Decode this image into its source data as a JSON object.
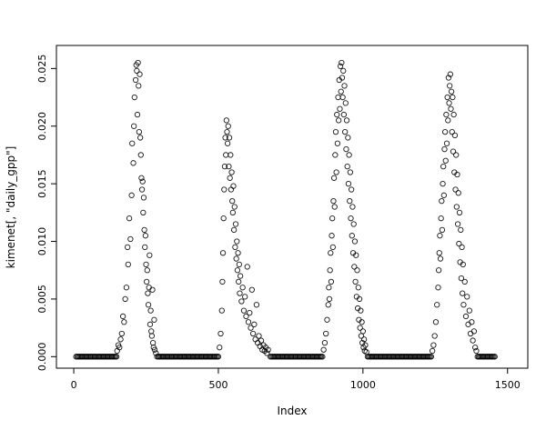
{
  "chart_data": {
    "type": "scatter",
    "title": "",
    "xlabel": "Index",
    "ylabel": "kimenet[, \"daily_gpp\"]",
    "point_style": "open-circle",
    "point_color": "#000000",
    "background_color": "#ffffff",
    "grid": false,
    "legend": false,
    "x_range": [
      -60,
      1570
    ],
    "y_range": [
      -0.001,
      0.027
    ],
    "x_ticks": [
      0,
      500,
      1000,
      1500
    ],
    "x_tick_labels": [
      "0",
      "500",
      "1000",
      "1500"
    ],
    "y_ticks": [
      0.0,
      0.005,
      0.01,
      0.015,
      0.02,
      0.025
    ],
    "y_tick_labels": [
      "0.000",
      "0.005",
      "0.010",
      "0.015",
      "0.020",
      "0.025"
    ],
    "baseline_runs": [
      {
        "x_start": 8,
        "x_end": 148,
        "step": 4,
        "y": 0
      },
      {
        "x_start": 288,
        "x_end": 500,
        "step": 4,
        "y": 0
      },
      {
        "x_start": 680,
        "x_end": 860,
        "step": 4,
        "y": 0
      },
      {
        "x_start": 1016,
        "x_end": 1236,
        "step": 4,
        "y": 0
      },
      {
        "x_start": 1396,
        "x_end": 1456,
        "step": 4,
        "y": 0
      }
    ],
    "points": [
      [
        150,
        0.0005
      ],
      [
        154,
        0.001
      ],
      [
        158,
        0.0008
      ],
      [
        162,
        0.0015
      ],
      [
        166,
        0.002
      ],
      [
        170,
        0.0035
      ],
      [
        174,
        0.003
      ],
      [
        178,
        0.005
      ],
      [
        182,
        0.006
      ],
      [
        186,
        0.0095
      ],
      [
        188,
        0.008
      ],
      [
        192,
        0.012
      ],
      [
        196,
        0.0102
      ],
      [
        200,
        0.014
      ],
      [
        202,
        0.0185
      ],
      [
        206,
        0.0168
      ],
      [
        208,
        0.02
      ],
      [
        210,
        0.0225
      ],
      [
        214,
        0.024
      ],
      [
        216,
        0.0253
      ],
      [
        218,
        0.0248
      ],
      [
        220,
        0.021
      ],
      [
        222,
        0.0255
      ],
      [
        224,
        0.0235
      ],
      [
        226,
        0.0195
      ],
      [
        228,
        0.0245
      ],
      [
        230,
        0.019
      ],
      [
        232,
        0.0175
      ],
      [
        234,
        0.0155
      ],
      [
        236,
        0.0145
      ],
      [
        238,
        0.0152
      ],
      [
        240,
        0.0125
      ],
      [
        242,
        0.0138
      ],
      [
        244,
        0.011
      ],
      [
        246,
        0.0095
      ],
      [
        248,
        0.0105
      ],
      [
        250,
        0.008
      ],
      [
        252,
        0.0065
      ],
      [
        254,
        0.0075
      ],
      [
        256,
        0.0055
      ],
      [
        258,
        0.0045
      ],
      [
        260,
        0.006
      ],
      [
        262,
        0.0088
      ],
      [
        264,
        0.0028
      ],
      [
        266,
        0.004
      ],
      [
        268,
        0.0022
      ],
      [
        270,
        0.0018
      ],
      [
        272,
        0.0058
      ],
      [
        274,
        0.0012
      ],
      [
        276,
        0.0008
      ],
      [
        278,
        0.0032
      ],
      [
        280,
        0.0006
      ],
      [
        284,
        0.0003
      ],
      [
        504,
        0.0008
      ],
      [
        508,
        0.002
      ],
      [
        512,
        0.004
      ],
      [
        514,
        0.0065
      ],
      [
        516,
        0.009
      ],
      [
        518,
        0.012
      ],
      [
        520,
        0.0145
      ],
      [
        522,
        0.0165
      ],
      [
        524,
        0.019
      ],
      [
        526,
        0.0175
      ],
      [
        528,
        0.0205
      ],
      [
        530,
        0.0195
      ],
      [
        532,
        0.0185
      ],
      [
        534,
        0.02
      ],
      [
        536,
        0.0165
      ],
      [
        538,
        0.019
      ],
      [
        540,
        0.0155
      ],
      [
        542,
        0.0175
      ],
      [
        544,
        0.0145
      ],
      [
        546,
        0.016
      ],
      [
        548,
        0.0135
      ],
      [
        550,
        0.0125
      ],
      [
        552,
        0.0148
      ],
      [
        554,
        0.011
      ],
      [
        556,
        0.013
      ],
      [
        558,
        0.0095
      ],
      [
        560,
        0.0115
      ],
      [
        562,
        0.0085
      ],
      [
        564,
        0.01
      ],
      [
        566,
        0.0075
      ],
      [
        568,
        0.009
      ],
      [
        570,
        0.0065
      ],
      [
        572,
        0.008
      ],
      [
        574,
        0.0055
      ],
      [
        576,
        0.007
      ],
      [
        580,
        0.0048
      ],
      [
        584,
        0.006
      ],
      [
        588,
        0.004
      ],
      [
        592,
        0.0052
      ],
      [
        596,
        0.0035
      ],
      [
        600,
        0.0078
      ],
      [
        604,
        0.003
      ],
      [
        608,
        0.0038
      ],
      [
        612,
        0.0025
      ],
      [
        616,
        0.0058
      ],
      [
        620,
        0.002
      ],
      [
        624,
        0.0028
      ],
      [
        628,
        0.0015
      ],
      [
        632,
        0.0045
      ],
      [
        636,
        0.0012
      ],
      [
        640,
        0.0018
      ],
      [
        644,
        0.0009
      ],
      [
        648,
        0.0014
      ],
      [
        652,
        0.0006
      ],
      [
        656,
        0.001
      ],
      [
        660,
        0.0005
      ],
      [
        664,
        0.0008
      ],
      [
        668,
        0.0003
      ],
      [
        672,
        0.0006
      ],
      [
        864,
        0.0006
      ],
      [
        868,
        0.0012
      ],
      [
        872,
        0.002
      ],
      [
        876,
        0.0032
      ],
      [
        880,
        0.0045
      ],
      [
        882,
        0.006
      ],
      [
        884,
        0.005
      ],
      [
        886,
        0.0075
      ],
      [
        888,
        0.009
      ],
      [
        890,
        0.0065
      ],
      [
        892,
        0.0105
      ],
      [
        894,
        0.012
      ],
      [
        896,
        0.0095
      ],
      [
        898,
        0.0135
      ],
      [
        900,
        0.0155
      ],
      [
        902,
        0.013
      ],
      [
        904,
        0.0175
      ],
      [
        906,
        0.0195
      ],
      [
        908,
        0.016
      ],
      [
        910,
        0.021
      ],
      [
        912,
        0.0185
      ],
      [
        914,
        0.0225
      ],
      [
        916,
        0.0205
      ],
      [
        918,
        0.024
      ],
      [
        920,
        0.0215
      ],
      [
        922,
        0.0252
      ],
      [
        924,
        0.023
      ],
      [
        926,
        0.0255
      ],
      [
        928,
        0.0242
      ],
      [
        930,
        0.0225
      ],
      [
        932,
        0.0248
      ],
      [
        934,
        0.021
      ],
      [
        936,
        0.0235
      ],
      [
        938,
        0.0195
      ],
      [
        940,
        0.022
      ],
      [
        942,
        0.018
      ],
      [
        944,
        0.0205
      ],
      [
        946,
        0.0165
      ],
      [
        948,
        0.019
      ],
      [
        950,
        0.015
      ],
      [
        952,
        0.0175
      ],
      [
        954,
        0.0135
      ],
      [
        956,
        0.016
      ],
      [
        958,
        0.012
      ],
      [
        960,
        0.0145
      ],
      [
        962,
        0.0105
      ],
      [
        964,
        0.013
      ],
      [
        966,
        0.009
      ],
      [
        968,
        0.0115
      ],
      [
        970,
        0.0078
      ],
      [
        972,
        0.01
      ],
      [
        974,
        0.0065
      ],
      [
        976,
        0.0088
      ],
      [
        978,
        0.0052
      ],
      [
        980,
        0.0075
      ],
      [
        982,
        0.0042
      ],
      [
        984,
        0.006
      ],
      [
        986,
        0.0032
      ],
      [
        988,
        0.005
      ],
      [
        990,
        0.0025
      ],
      [
        992,
        0.004
      ],
      [
        994,
        0.0018
      ],
      [
        996,
        0.003
      ],
      [
        998,
        0.0012
      ],
      [
        1000,
        0.0022
      ],
      [
        1002,
        0.0008
      ],
      [
        1004,
        0.0015
      ],
      [
        1006,
        0.0005
      ],
      [
        1008,
        0.001
      ],
      [
        1012,
        0.0004
      ],
      [
        1240,
        0.0005
      ],
      [
        1244,
        0.001
      ],
      [
        1248,
        0.0018
      ],
      [
        1252,
        0.003
      ],
      [
        1256,
        0.0045
      ],
      [
        1260,
        0.006
      ],
      [
        1262,
        0.0075
      ],
      [
        1264,
        0.009
      ],
      [
        1266,
        0.0105
      ],
      [
        1268,
        0.0085
      ],
      [
        1270,
        0.012
      ],
      [
        1272,
        0.0135
      ],
      [
        1274,
        0.011
      ],
      [
        1276,
        0.015
      ],
      [
        1278,
        0.0165
      ],
      [
        1280,
        0.014
      ],
      [
        1282,
        0.018
      ],
      [
        1284,
        0.0195
      ],
      [
        1286,
        0.017
      ],
      [
        1288,
        0.021
      ],
      [
        1290,
        0.0185
      ],
      [
        1292,
        0.0225
      ],
      [
        1294,
        0.0205
      ],
      [
        1296,
        0.0242
      ],
      [
        1298,
        0.022
      ],
      [
        1300,
        0.0235
      ],
      [
        1302,
        0.0245
      ],
      [
        1304,
        0.0215
      ],
      [
        1306,
        0.023
      ],
      [
        1308,
        0.0195
      ],
      [
        1310,
        0.0225
      ],
      [
        1312,
        0.0178
      ],
      [
        1314,
        0.021
      ],
      [
        1316,
        0.016
      ],
      [
        1318,
        0.0192
      ],
      [
        1320,
        0.0145
      ],
      [
        1322,
        0.0175
      ],
      [
        1324,
        0.013
      ],
      [
        1326,
        0.0158
      ],
      [
        1328,
        0.0115
      ],
      [
        1330,
        0.0142
      ],
      [
        1332,
        0.0098
      ],
      [
        1334,
        0.0125
      ],
      [
        1336,
        0.0082
      ],
      [
        1338,
        0.011
      ],
      [
        1340,
        0.0068
      ],
      [
        1342,
        0.0095
      ],
      [
        1344,
        0.0055
      ],
      [
        1346,
        0.008
      ],
      [
        1348,
        0.0045
      ],
      [
        1352,
        0.0065
      ],
      [
        1356,
        0.0035
      ],
      [
        1360,
        0.0052
      ],
      [
        1364,
        0.0028
      ],
      [
        1368,
        0.004
      ],
      [
        1372,
        0.002
      ],
      [
        1376,
        0.003
      ],
      [
        1380,
        0.0014
      ],
      [
        1384,
        0.0022
      ],
      [
        1388,
        0.0008
      ],
      [
        1392,
        0.0005
      ]
    ]
  }
}
